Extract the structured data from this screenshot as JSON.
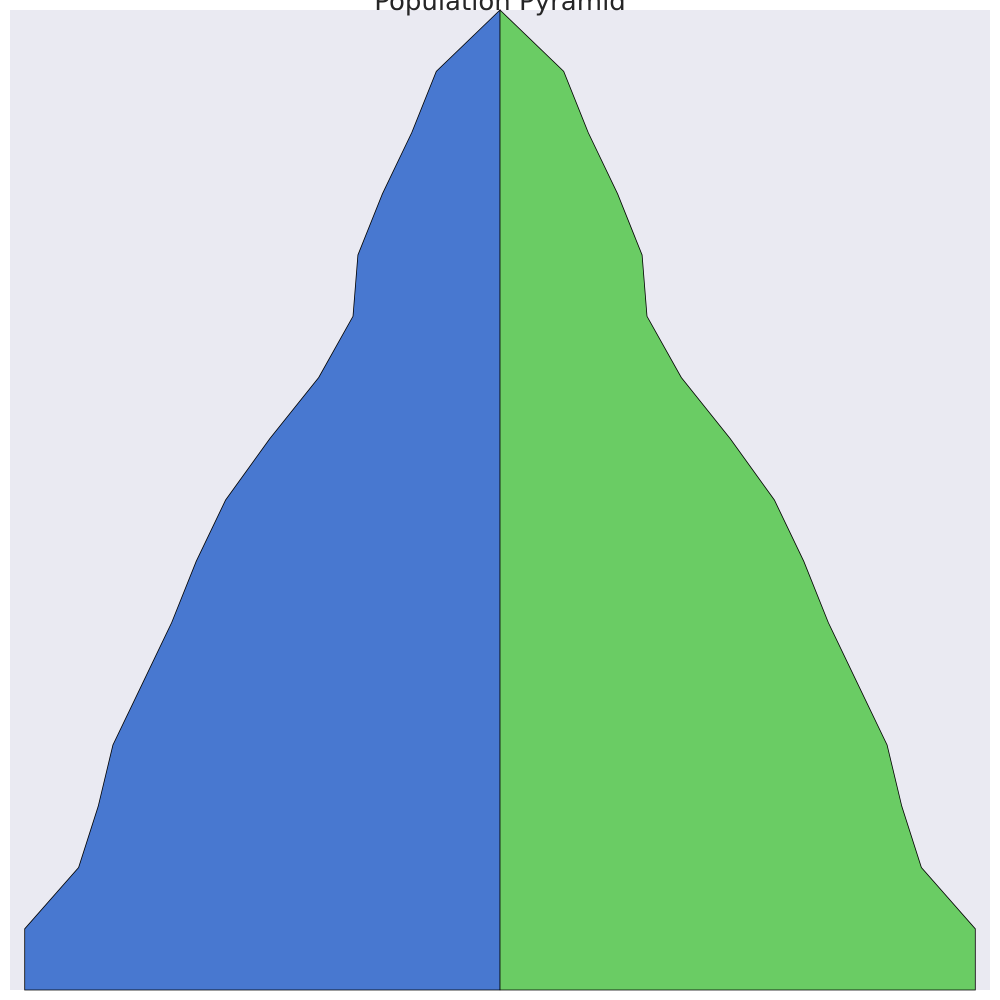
{
  "chart_data": {
    "type": "area",
    "title": "Population Pyramid",
    "xlabel": "",
    "ylabel": "",
    "grid": false,
    "legend": "none",
    "xlim": [
      -1,
      1
    ],
    "ylim": [
      0,
      16
    ],
    "series": [
      {
        "side": "left",
        "color": "#4878d0",
        "y": [
          16,
          15,
          14,
          13,
          12,
          11,
          10,
          9,
          8,
          7,
          6,
          5,
          4,
          3,
          2,
          1,
          0
        ],
        "values": [
          0.0,
          0.13,
          0.18,
          0.24,
          0.29,
          0.3,
          0.37,
          0.47,
          0.56,
          0.62,
          0.67,
          0.73,
          0.79,
          0.82,
          0.86,
          0.97,
          0.97
        ]
      },
      {
        "side": "right",
        "color": "#6acc64",
        "y": [
          16,
          15,
          14,
          13,
          12,
          11,
          10,
          9,
          8,
          7,
          6,
          5,
          4,
          3,
          2,
          1,
          0
        ],
        "values": [
          0.0,
          0.13,
          0.18,
          0.24,
          0.29,
          0.3,
          0.37,
          0.47,
          0.56,
          0.62,
          0.67,
          0.73,
          0.79,
          0.82,
          0.86,
          0.97,
          0.97
        ]
      }
    ],
    "colors": {
      "plot_background": "#eaeaf2",
      "outline": "#000000"
    }
  }
}
